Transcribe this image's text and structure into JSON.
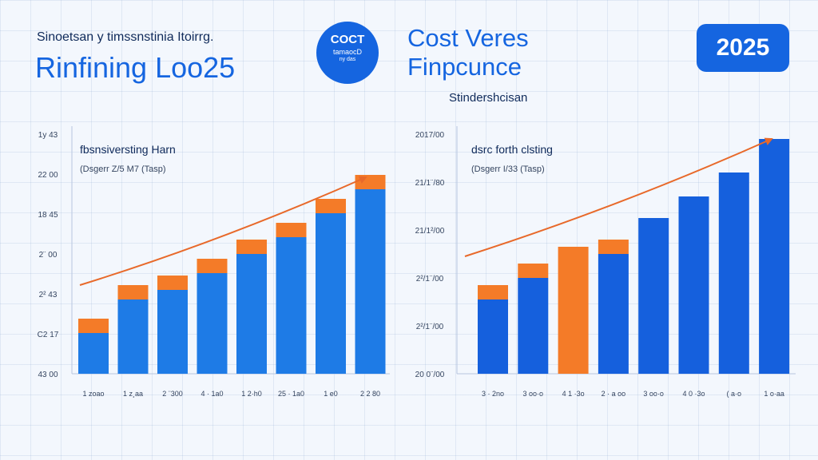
{
  "header": {
    "left_subtitle": "Sinoetsan y timssnstinia Itoirrg.",
    "left_title": "Rinfining Loo25",
    "badge": {
      "line1": "COCT",
      "line2": "tamaocD",
      "line3": "ny das"
    },
    "right_title_line1": "Cost Veres",
    "right_title_line2": "Finpcunce",
    "right_subtitle": "Stindershcisan",
    "year": "2025"
  },
  "colors": {
    "bar_blue": "#1e7be6",
    "bar_blue_dark": "#1560dd",
    "bar_orange": "#f47b28",
    "trend": "#e8692a",
    "accent": "#1565e0"
  },
  "chart_data": [
    {
      "type": "bar",
      "legend_title": "fbsnsiversting Harn",
      "legend_sub": "(Dsgerr Z/5 M7 (Tasp)",
      "y_tick_labels": [
        "1y 43",
        "22 00",
        "18 45",
        "2¨ 00",
        "2² 43",
        "C2 17",
        "43 00"
      ],
      "categories": [
        "1 zoao",
        "1 z¸aa",
        "2 ¨300",
        "4 · 1a0",
        "1 2·h0",
        "25 · 1a0",
        "1 e0",
        "2 2 80"
      ],
      "ylim": [
        0,
        100
      ],
      "series": [
        {
          "values": [
            17,
            31,
            35,
            42,
            50,
            57,
            67,
            77
          ]
        },
        {
          "values": [
            6,
            6,
            6,
            6,
            6,
            6,
            6,
            6
          ]
        }
      ],
      "trend": [
        37,
        82
      ]
    },
    {
      "type": "bar",
      "legend_title": "dsrc forth clsting",
      "legend_sub": "(Dsgerr I/33 (Tasp)",
      "y_tick_labels": [
        "2017/00",
        "21/1¨/80",
        "21/1²/00",
        "2²/1¨/00",
        "2²/1¨/00",
        "20 0¨/00"
      ],
      "categories": [
        "3 · 2no",
        "3 oo·o",
        "4 1 ·3o",
        "2 · a oo",
        "3 oo·o",
        "4 0 ·3o",
        "( a·o",
        "1 o·aa"
      ],
      "ylim": [
        0,
        100
      ],
      "series": [
        {
          "values": [
            31,
            40,
            0,
            50,
            65,
            74,
            84,
            98
          ]
        },
        {
          "values": [
            6,
            6,
            53,
            6,
            0,
            0,
            0,
            0
          ]
        }
      ],
      "trend": [
        49,
        98
      ]
    }
  ]
}
